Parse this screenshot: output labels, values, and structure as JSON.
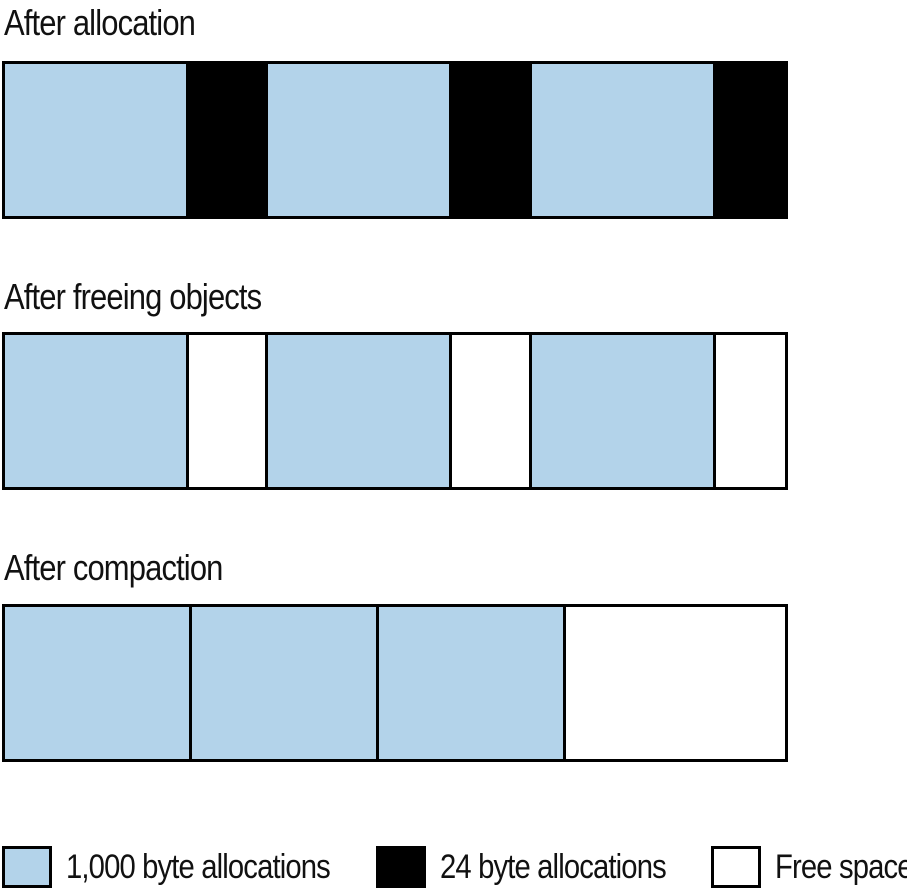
{
  "colors": {
    "large_allocation": "#b3d3ea",
    "small_allocation": "#000000",
    "free_space": "#ffffff"
  },
  "stages": [
    {
      "title": "After allocation",
      "segments": [
        {
          "kind": "large_allocation",
          "share": 0.2362
        },
        {
          "kind": "small_allocation",
          "share": 0.1003
        },
        {
          "kind": "large_allocation",
          "share": 0.2362
        },
        {
          "kind": "small_allocation",
          "share": 0.1003
        },
        {
          "kind": "large_allocation",
          "share": 0.2362
        },
        {
          "kind": "small_allocation",
          "share": 0.0908
        }
      ]
    },
    {
      "title": "After freeing objects",
      "segments": [
        {
          "kind": "large_allocation",
          "share": 0.2362
        },
        {
          "kind": "free_space",
          "share": 0.1003
        },
        {
          "kind": "large_allocation",
          "share": 0.2362
        },
        {
          "kind": "free_space",
          "share": 0.1003
        },
        {
          "kind": "large_allocation",
          "share": 0.2362
        },
        {
          "kind": "free_space",
          "share": 0.0908
        }
      ]
    },
    {
      "title": "After compaction",
      "segments": [
        {
          "kind": "large_allocation",
          "share": 0.2388
        },
        {
          "kind": "large_allocation",
          "share": 0.2388
        },
        {
          "kind": "large_allocation",
          "share": 0.2388
        },
        {
          "kind": "free_space",
          "share": 0.2836
        }
      ]
    }
  ],
  "legend": {
    "large_allocation": "1,000 byte allocations",
    "small_allocation": "24 byte allocations",
    "free_space": "Free space"
  }
}
